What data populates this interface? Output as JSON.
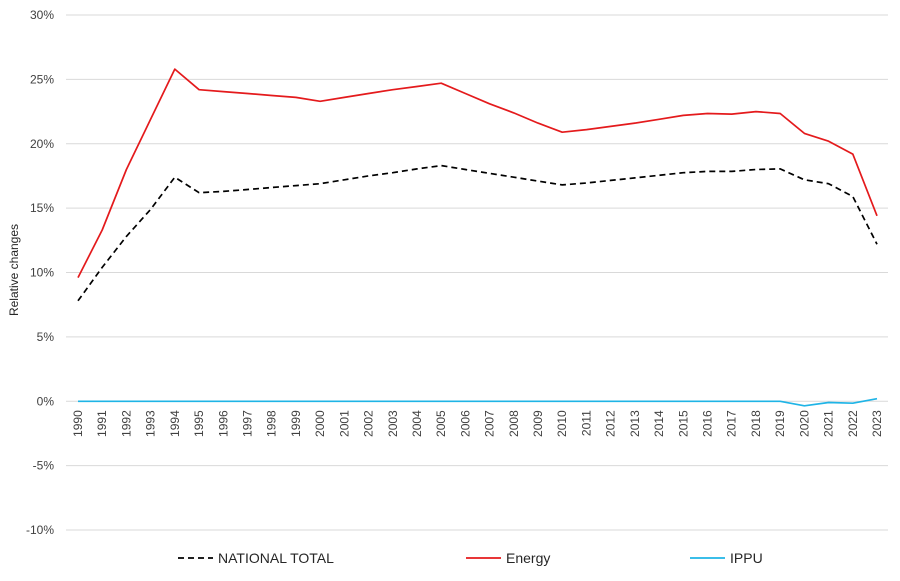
{
  "chart_data": {
    "type": "line",
    "ylabel": "Relative changes",
    "xlabel": "",
    "ylim": [
      -10,
      30
    ],
    "yticks": [
      "30%",
      "25%",
      "20%",
      "15%",
      "10%",
      "5%",
      "0%",
      "-5%",
      "-10%"
    ],
    "ytick_values": [
      30,
      25,
      20,
      15,
      10,
      5,
      0,
      -5,
      -10
    ],
    "grid": true,
    "legend_position": "bottom",
    "categories": [
      "1990",
      "1991",
      "1992",
      "1993",
      "1994",
      "1995",
      "1996",
      "1997",
      "1998",
      "1999",
      "2000",
      "2001",
      "2002",
      "2003",
      "2004",
      "2005",
      "2006",
      "2007",
      "2008",
      "2009",
      "2010",
      "2011",
      "2012",
      "2013",
      "2014",
      "2015",
      "2016",
      "2017",
      "2018",
      "2019",
      "2020",
      "2021",
      "2022",
      "2023"
    ],
    "series": [
      {
        "name": "NATIONAL TOTAL",
        "color": "#000000",
        "dash": "dashed",
        "values": [
          7.8,
          10.4,
          12.8,
          14.9,
          17.4,
          16.2,
          16.3,
          16.45,
          16.6,
          16.75,
          16.9,
          17.2,
          17.5,
          17.75,
          18.05,
          18.3,
          18.0,
          17.7,
          17.4,
          17.1,
          16.8,
          16.95,
          17.15,
          17.35,
          17.55,
          17.75,
          17.85,
          17.85,
          18.0,
          18.05,
          17.2,
          16.9,
          15.9,
          12.2
        ]
      },
      {
        "name": "Energy",
        "color": "#e41a1c",
        "dash": "solid",
        "values": [
          9.6,
          13.3,
          18.0,
          21.9,
          25.8,
          24.2,
          24.05,
          23.9,
          23.75,
          23.6,
          23.3,
          23.6,
          23.9,
          24.2,
          24.45,
          24.7,
          23.9,
          23.1,
          22.4,
          21.6,
          20.9,
          21.1,
          21.35,
          21.6,
          21.9,
          22.2,
          22.35,
          22.3,
          22.5,
          22.35,
          20.8,
          20.2,
          19.2,
          14.4
        ]
      },
      {
        "name": "IPPU",
        "color": "#1fb4e6",
        "dash": "solid",
        "values": [
          0,
          0,
          0,
          0,
          0,
          0,
          0,
          0,
          0,
          0,
          0,
          0,
          0,
          0,
          0,
          0,
          0,
          0,
          0,
          0,
          0,
          0,
          0,
          0,
          0,
          0,
          0,
          0,
          0,
          0,
          -0.35,
          -0.1,
          -0.15,
          0.2
        ]
      }
    ]
  }
}
